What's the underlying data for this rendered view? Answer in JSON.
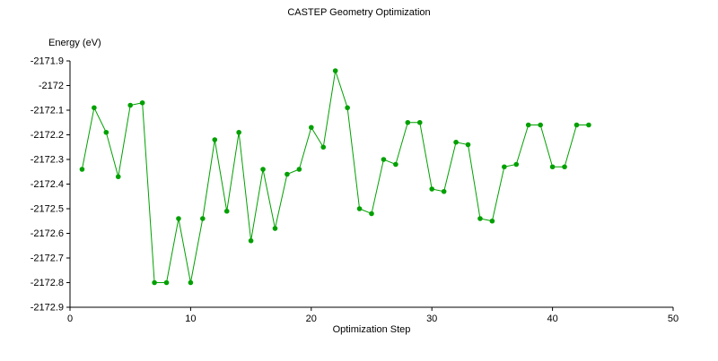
{
  "page": {
    "background_color": "#ffffff",
    "text_color": "#000000"
  },
  "chart_data": {
    "type": "line",
    "title": "CASTEP Geometry Optimization",
    "xlabel": "Optimization Step",
    "ylabel": "Energy (eV)",
    "xlim": [
      0,
      50
    ],
    "ylim": [
      -2172.9,
      -2171.9
    ],
    "grid": false,
    "legend_position": "none",
    "line_color": "#00a000",
    "axis_color": "#000000",
    "marker": "circle",
    "series_name": "Energy",
    "x": [
      1,
      2,
      3,
      4,
      5,
      6,
      7,
      8,
      9,
      10,
      11,
      12,
      13,
      14,
      15,
      16,
      17,
      18,
      19,
      20,
      21,
      22,
      23,
      24,
      25,
      26,
      27,
      28,
      29,
      30,
      31,
      32,
      33,
      34,
      35,
      36,
      37,
      38,
      39,
      40,
      41,
      42,
      43
    ],
    "y": [
      -2172.34,
      -2172.09,
      -2172.19,
      -2172.37,
      -2172.08,
      -2172.07,
      -2172.8,
      -2172.8,
      -2172.54,
      -2172.8,
      -2172.54,
      -2172.22,
      -2172.51,
      -2172.19,
      -2172.63,
      -2172.34,
      -2172.58,
      -2172.36,
      -2172.34,
      -2172.17,
      -2172.25,
      -2171.94,
      -2172.09,
      -2172.5,
      -2172.52,
      -2172.3,
      -2172.32,
      -2172.15,
      -2172.15,
      -2172.42,
      -2172.43,
      -2172.23,
      -2172.24,
      -2172.54,
      -2172.55,
      -2172.33,
      -2172.32,
      -2172.16,
      -2172.16,
      -2172.33,
      -2172.33,
      -2172.16,
      -2172.16
    ],
    "xticks": {
      "values": [
        0,
        10,
        20,
        30,
        40,
        50
      ],
      "labels": [
        "0",
        "10",
        "20",
        "30",
        "40",
        "50"
      ]
    },
    "yticks": {
      "values": [
        -2171.9,
        -2172.0,
        -2172.1,
        -2172.2,
        -2172.3,
        -2172.4,
        -2172.5,
        -2172.6,
        -2172.7,
        -2172.8,
        -2172.9
      ],
      "labels": [
        "-2171.9",
        "-2172",
        "-2172.1",
        "-2172.2",
        "-2172.3",
        "-2172.4",
        "-2172.5",
        "-2172.6",
        "-2172.7",
        "-2172.8",
        "-2172.9"
      ]
    }
  }
}
